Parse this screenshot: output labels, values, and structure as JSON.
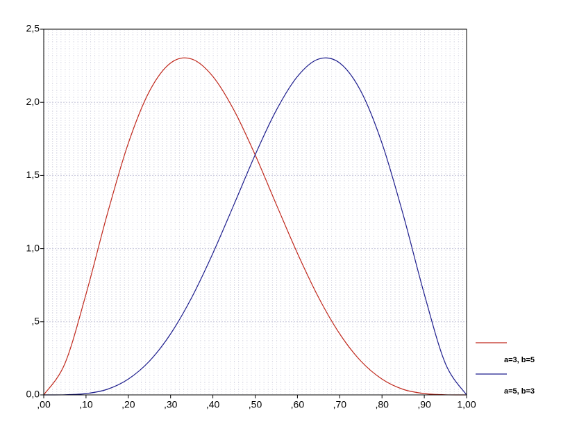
{
  "chart_data": {
    "type": "line",
    "x": [
      0,
      0.05,
      0.1,
      0.15,
      0.2,
      0.25,
      0.3,
      0.35,
      0.4,
      0.45,
      0.5,
      0.55,
      0.6,
      0.65,
      0.7,
      0.75,
      0.8,
      0.85,
      0.9,
      0.95,
      1
    ],
    "series": [
      {
        "name": "a=3, b=5",
        "color": "#c0281c",
        "values": [
          0,
          0.214,
          0.689,
          1.233,
          1.72,
          2.076,
          2.269,
          2.296,
          2.177,
          1.946,
          1.641,
          1.302,
          0.968,
          0.666,
          0.417,
          0.231,
          0.108,
          0.038,
          0.009,
          0.001,
          0
        ]
      },
      {
        "name": "a=5, b=3",
        "color": "#1c1c8c",
        "values": [
          0,
          0.001,
          0.009,
          0.038,
          0.108,
          0.231,
          0.417,
          0.666,
          0.968,
          1.302,
          1.641,
          1.946,
          2.177,
          2.296,
          2.269,
          2.076,
          1.72,
          1.233,
          0.689,
          0.214,
          0
        ]
      }
    ],
    "xlim": [
      0,
      1
    ],
    "ylim": [
      0,
      2.5
    ],
    "xticks": [
      {
        "value": 0,
        "label": ",00"
      },
      {
        "value": 0.1,
        "label": ",10"
      },
      {
        "value": 0.2,
        "label": ",20"
      },
      {
        "value": 0.3,
        "label": ",30"
      },
      {
        "value": 0.4,
        "label": ",40"
      },
      {
        "value": 0.5,
        "label": ",50"
      },
      {
        "value": 0.6,
        "label": ",60"
      },
      {
        "value": 0.7,
        "label": ",70"
      },
      {
        "value": 0.8,
        "label": ",80"
      },
      {
        "value": 0.9,
        "label": ",90"
      },
      {
        "value": 1,
        "label": "1,00"
      }
    ],
    "yticks": [
      {
        "value": 0,
        "label": "0,0"
      },
      {
        "value": 0.5,
        "label": ",5"
      },
      {
        "value": 1,
        "label": "1,0"
      },
      {
        "value": 1.5,
        "label": "1,5"
      },
      {
        "value": 2,
        "label": "2,0"
      },
      {
        "value": 2.5,
        "label": "2,5"
      }
    ],
    "grid": true
  }
}
